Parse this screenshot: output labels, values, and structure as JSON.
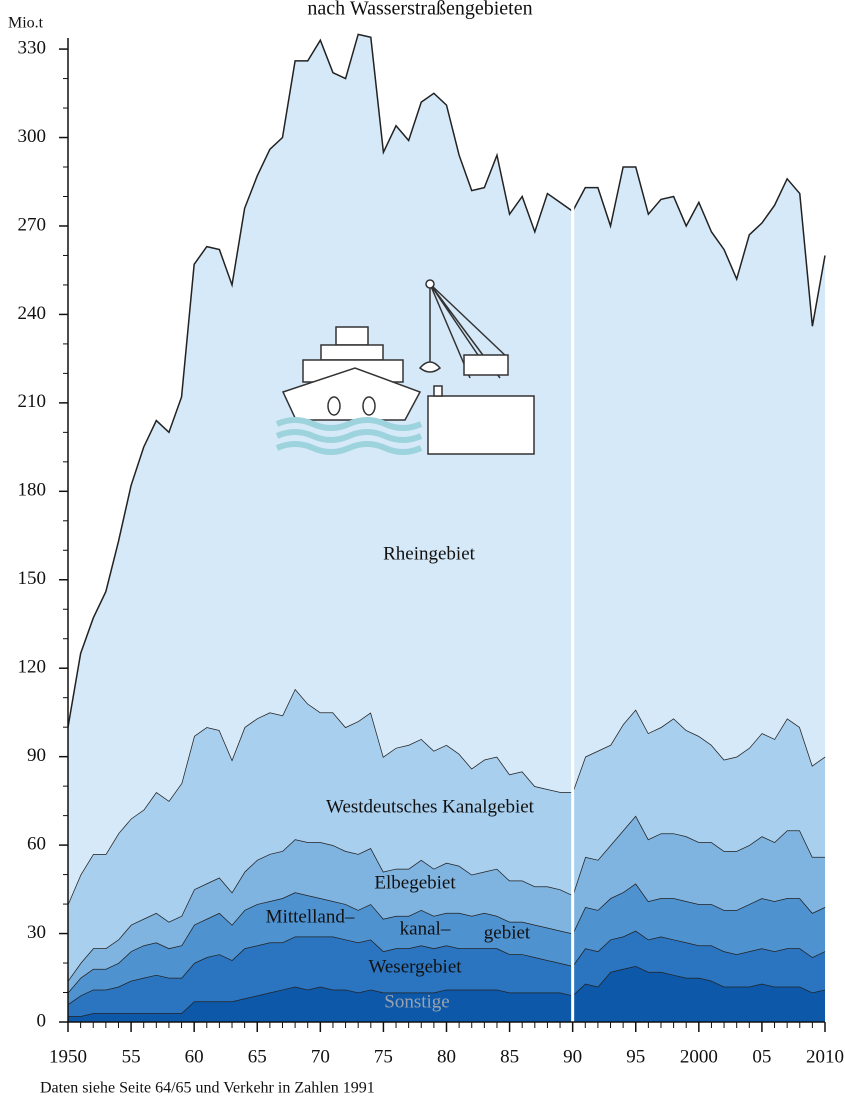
{
  "chart_data": {
    "type": "stacked_area",
    "title": "nach Wasserstraßengebieten",
    "y_unit": "Mio.t",
    "source": "Daten siehe Seite 64/65 und Verkehr in Zahlen 1991",
    "break_x": 1990,
    "x": [
      1950,
      1951,
      1952,
      1953,
      1954,
      1955,
      1956,
      1957,
      1958,
      1959,
      1960,
      1961,
      1962,
      1963,
      1964,
      1965,
      1966,
      1967,
      1968,
      1969,
      1970,
      1971,
      1972,
      1973,
      1974,
      1975,
      1976,
      1977,
      1978,
      1979,
      1980,
      1981,
      1982,
      1983,
      1984,
      1985,
      1986,
      1987,
      1988,
      1989,
      1990,
      1991,
      1992,
      1993,
      1994,
      1995,
      1996,
      1997,
      1998,
      1999,
      2000,
      2001,
      2002,
      2003,
      2004,
      2005,
      2006,
      2007,
      2008,
      2009,
      2010
    ],
    "xlim": [
      1950,
      2010
    ],
    "xticks": [
      {
        "value": 1950,
        "label": "1950"
      },
      {
        "value": 1955,
        "label": "55"
      },
      {
        "value": 1960,
        "label": "60"
      },
      {
        "value": 1965,
        "label": "65"
      },
      {
        "value": 1970,
        "label": "70"
      },
      {
        "value": 1975,
        "label": "75"
      },
      {
        "value": 1980,
        "label": "80"
      },
      {
        "value": 1985,
        "label": "85"
      },
      {
        "value": 1990,
        "label": "90"
      },
      {
        "value": 1995,
        "label": "95"
      },
      {
        "value": 2000,
        "label": "2000"
      },
      {
        "value": 2005,
        "label": "05"
      },
      {
        "value": 2010,
        "label": "2010"
      }
    ],
    "ylim": [
      0,
      340
    ],
    "yticks": [
      0,
      30,
      60,
      90,
      120,
      150,
      180,
      210,
      240,
      270,
      300,
      330
    ],
    "series": [
      {
        "name": "Sonstige",
        "color": "#0d58a8",
        "values": [
          2,
          2,
          3,
          3,
          3,
          3,
          3,
          3,
          3,
          3,
          7,
          7,
          7,
          7,
          8,
          9,
          10,
          11,
          12,
          11,
          12,
          11,
          11,
          10,
          11,
          10,
          10,
          10,
          10,
          10,
          11,
          11,
          11,
          11,
          11,
          10,
          10,
          10,
          10,
          10,
          9,
          13,
          12,
          17,
          18,
          19,
          17,
          17,
          16,
          15,
          15,
          14,
          12,
          12,
          12,
          13,
          12,
          12,
          12,
          10,
          11
        ]
      },
      {
        "name": "Wesergebiet",
        "color": "#2b74bf",
        "values": [
          4,
          7,
          8,
          8,
          9,
          11,
          12,
          13,
          12,
          12,
          13,
          15,
          16,
          14,
          17,
          17,
          17,
          16,
          17,
          18,
          17,
          18,
          17,
          17,
          17,
          14,
          15,
          15,
          16,
          15,
          15,
          14,
          14,
          14,
          14,
          13,
          13,
          12,
          11,
          10,
          10,
          12,
          12,
          11,
          11,
          12,
          11,
          12,
          12,
          12,
          11,
          12,
          12,
          11,
          12,
          12,
          12,
          13,
          13,
          12,
          13
        ]
      },
      {
        "name_parts": [
          "Mittelland–",
          "kanal–",
          "gebiet"
        ],
        "color": "#4f92d0",
        "values": [
          4,
          6,
          7,
          7,
          8,
          10,
          11,
          11,
          10,
          11,
          13,
          13,
          14,
          12,
          13,
          14,
          14,
          15,
          15,
          14,
          13,
          12,
          12,
          11,
          12,
          11,
          11,
          11,
          12,
          11,
          11,
          12,
          11,
          12,
          11,
          11,
          11,
          11,
          11,
          11,
          11,
          14,
          14,
          14,
          15,
          16,
          13,
          13,
          14,
          14,
          14,
          14,
          14,
          15,
          16,
          17,
          17,
          17,
          17,
          15,
          15
        ]
      },
      {
        "name": "Elbegebiet",
        "color": "#7fb3e0",
        "values": [
          4,
          5,
          7,
          7,
          8,
          9,
          9,
          10,
          9,
          10,
          12,
          12,
          12,
          11,
          13,
          15,
          16,
          16,
          18,
          18,
          19,
          19,
          18,
          19,
          19,
          16,
          16,
          16,
          17,
          16,
          17,
          16,
          14,
          14,
          16,
          14,
          14,
          13,
          14,
          14,
          13,
          17,
          17,
          18,
          21,
          23,
          21,
          22,
          22,
          22,
          21,
          21,
          20,
          20,
          20,
          21,
          20,
          23,
          23,
          19,
          17
        ]
      },
      {
        "name": "Westdeutsches Kanalgebiet",
        "color": "#a9cfee",
        "values": [
          26,
          30,
          32,
          32,
          36,
          36,
          37,
          41,
          41,
          45,
          52,
          53,
          50,
          45,
          49,
          48,
          48,
          46,
          51,
          47,
          44,
          45,
          42,
          45,
          46,
          39,
          41,
          42,
          41,
          40,
          40,
          38,
          36,
          38,
          38,
          36,
          37,
          34,
          33,
          33,
          35,
          34,
          37,
          34,
          36,
          36,
          36,
          36,
          39,
          36,
          36,
          33,
          31,
          32,
          33,
          35,
          35,
          38,
          35,
          31,
          34
        ]
      },
      {
        "name": "Rheingebiet",
        "color": "#d6e9f8",
        "values": [
          60,
          75,
          80,
          89,
          99,
          113,
          123,
          126,
          125,
          131,
          160,
          163,
          163,
          161,
          176,
          184,
          191,
          196,
          213,
          218,
          228,
          217,
          220,
          233,
          229,
          205,
          211,
          205,
          216,
          223,
          217,
          203,
          196,
          194,
          204,
          190,
          195,
          188,
          202,
          200,
          197,
          193,
          191,
          176,
          189,
          184,
          176,
          179,
          177,
          171,
          181,
          174,
          173,
          162,
          174,
          173,
          181,
          183,
          181,
          149,
          170
        ]
      }
    ]
  }
}
